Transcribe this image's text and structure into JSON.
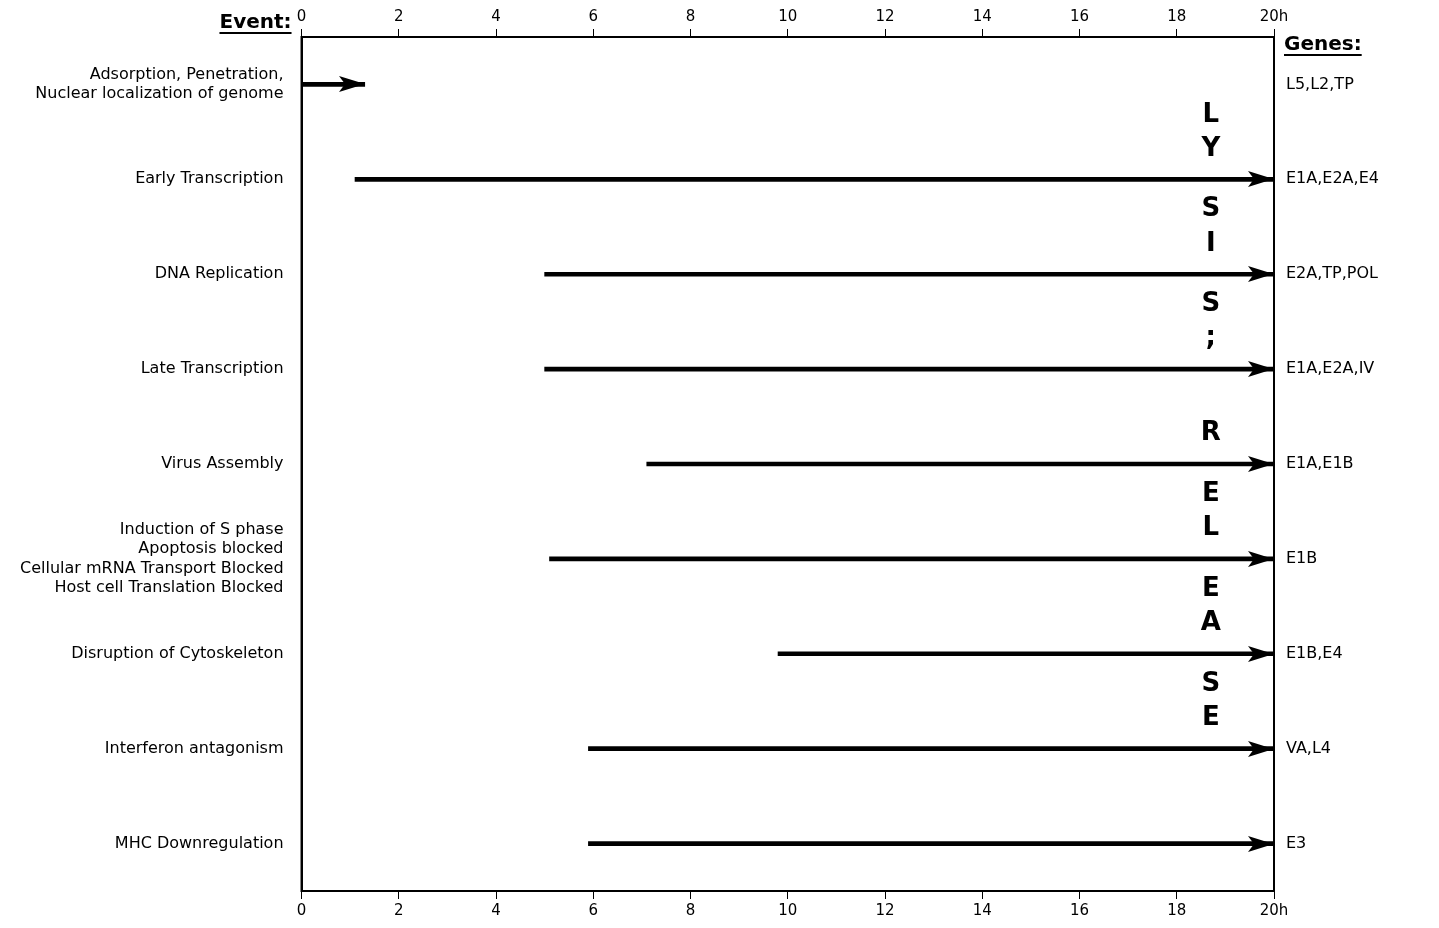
{
  "chart_data": {
    "type": "bar",
    "orientation": "horizontal",
    "ylabel": "Event:",
    "y2label": "Genes:",
    "categories": [
      "Adsorption, Penetration,\nNuclear localization of genome",
      "Early Transcription",
      "DNA Replication",
      "Late Transcription",
      "Virus Assembly",
      "Induction of S phase\nApoptosis blocked\nCellular mRNA Transport Blocked\nHost cell Translation Blocked",
      "Disruption of Cytoskeleton",
      "Interferon antagonism",
      "MHC Downregulation"
    ],
    "base": [
      0,
      1.1,
      5,
      5,
      7.1,
      5.1,
      9.8,
      5.9,
      5.9
    ],
    "values": [
      1.3,
      18.9,
      15,
      15,
      12.9,
      14.9,
      10.2,
      14.1,
      14.1
    ],
    "color": "#000000",
    "xlim": [
      0,
      20
    ],
    "xticks": [
      0,
      2,
      4,
      6,
      8,
      10,
      12,
      14,
      16,
      18,
      {
        "value": 20,
        "label": "20h"
      }
    ],
    "x2lim": [
      0,
      20
    ],
    "x2ticks": [
      0,
      2,
      4,
      6,
      8,
      10,
      12,
      14,
      16,
      18,
      {
        "value": 20,
        "label": "20h"
      }
    ],
    "annotations": [
      "L5,L2,TP",
      "E1A,E2A,E4",
      "E2A,TP,POL",
      "E1A,E2A,IV",
      "E1A,E1B",
      "E1B",
      "E1B,E4",
      "VA,L4",
      "E3",
      "LYSIS; RELEASE"
    ],
    "grid": false,
    "legend": false
  }
}
